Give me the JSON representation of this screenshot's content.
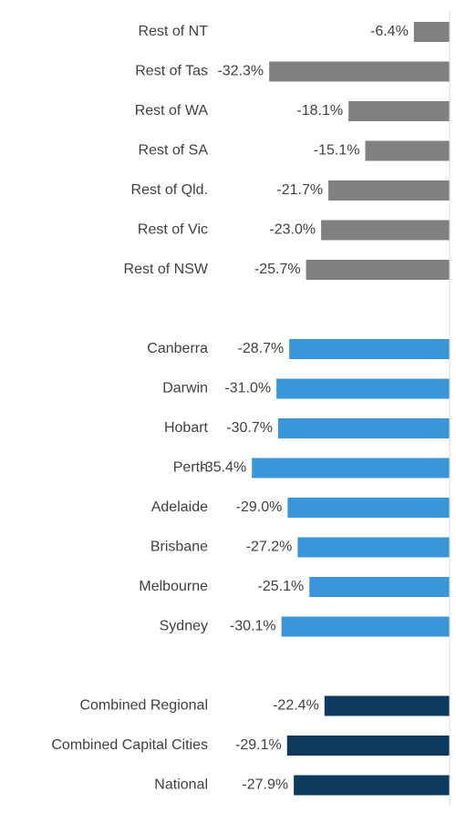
{
  "chart_data": {
    "type": "bar",
    "orientation": "horizontal",
    "categories": [
      "Rest of NT",
      "Rest of Tas",
      "Rest of WA",
      "Rest of SA",
      "Rest of Qld.",
      "Rest of Vic",
      "Rest of NSW",
      null,
      "Canberra",
      "Darwin",
      "Hobart",
      "Perth",
      "Adelaide",
      "Brisbane",
      "Melbourne",
      "Sydney",
      null,
      "Combined Regional",
      "Combined Capital Cities",
      "National"
    ],
    "values": [
      -6.4,
      -32.3,
      -18.1,
      -15.1,
      -21.7,
      -23.0,
      -25.7,
      null,
      -28.7,
      -31.0,
      -30.7,
      -35.4,
      -29.0,
      -27.2,
      -25.1,
      -30.1,
      null,
      -22.4,
      -29.1,
      -27.9
    ],
    "value_labels": [
      "-6.4%",
      "-32.3%",
      "-18.1%",
      "-15.1%",
      "-21.7%",
      "-23.0%",
      "-25.7%",
      null,
      "-28.7%",
      "-31.0%",
      "-30.7%",
      "-35.4%",
      "-29.0%",
      "-27.2%",
      "-25.1%",
      "-30.1%",
      null,
      "-22.4%",
      "-29.1%",
      "-27.9%"
    ],
    "colors": [
      "#808080",
      "#808080",
      "#808080",
      "#808080",
      "#808080",
      "#808080",
      "#808080",
      null,
      "#3a96db",
      "#3a96db",
      "#3a96db",
      "#3a96db",
      "#3a96db",
      "#3a96db",
      "#3a96db",
      "#3a96db",
      null,
      "#0e3a5e",
      "#0e3a5e",
      "#0e3a5e"
    ],
    "xlim": [
      -80,
      0
    ]
  }
}
